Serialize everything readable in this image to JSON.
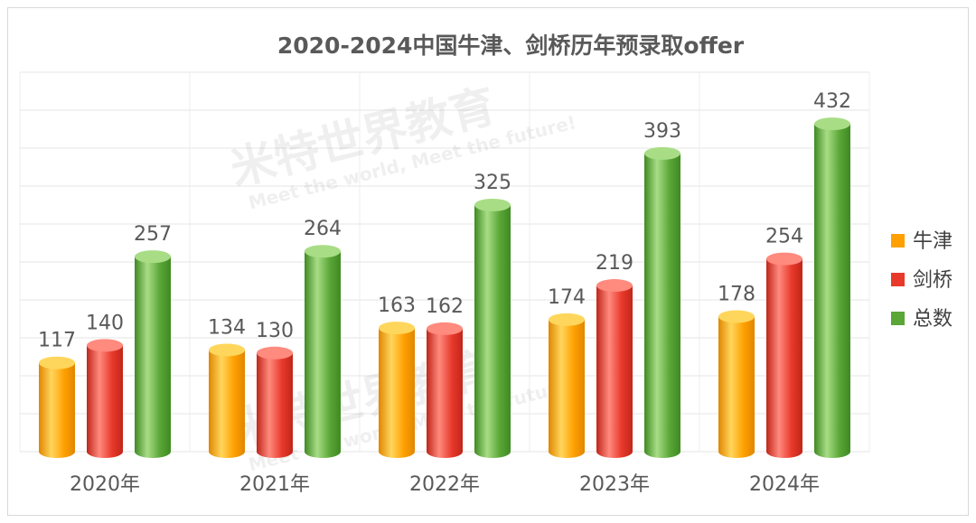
{
  "chart_data": {
    "type": "bar",
    "title": "2020-2024中国牛津、剑桥历年预录取offer",
    "categories": [
      "2020年",
      "2021年",
      "2022年",
      "2023年",
      "2024年"
    ],
    "series": [
      {
        "name": "牛津",
        "values": [
          117,
          134,
          163,
          174,
          178
        ]
      },
      {
        "name": "剑桥",
        "values": [
          140,
          130,
          162,
          219,
          254
        ]
      },
      {
        "name": "总数",
        "values": [
          257,
          264,
          325,
          393,
          432
        ]
      }
    ],
    "ylim": [
      0,
      500
    ],
    "grid": true,
    "legend": "right",
    "colors": {
      "牛津": {
        "main": "#ffa000",
        "light": "#ffd65c",
        "dark": "#e08600"
      },
      "剑桥": {
        "main": "#e8392b",
        "light": "#ff8a7e",
        "dark": "#c0261a"
      },
      "总数": {
        "main": "#5aa637",
        "light": "#a8dd86",
        "dark": "#3f8a22"
      }
    }
  },
  "watermark": {
    "logo_text": "米特世界教育",
    "slogan": "Meet the world, Meet the future!"
  }
}
